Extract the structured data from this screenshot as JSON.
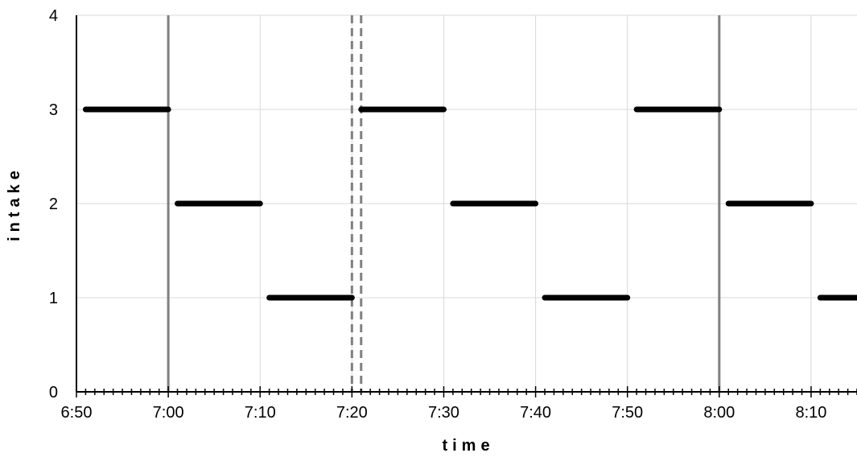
{
  "chart_data": {
    "type": "line",
    "xlabel": "time",
    "ylabel": "intake",
    "xlim": [
      "6:50",
      "8:15"
    ],
    "ylim": [
      0,
      4
    ],
    "x_ticks": [
      "6:50",
      "7:00",
      "7:10",
      "7:20",
      "7:30",
      "7:40",
      "7:50",
      "8:00",
      "8:10"
    ],
    "y_ticks": [
      0,
      1,
      2,
      3,
      4
    ],
    "grid": true,
    "colors": {
      "series": "#000000",
      "grid": "#d9d9d9",
      "marker_solid": "#808080",
      "marker_dashed": "#808080"
    },
    "series": [
      {
        "segments": [
          {
            "x_start": "6:51",
            "x_end": "7:00",
            "y": 3
          },
          {
            "x_start": "7:01",
            "x_end": "7:10",
            "y": 2
          },
          {
            "x_start": "7:11",
            "x_end": "7:20",
            "y": 1
          },
          {
            "x_start": "7:21",
            "x_end": "7:30",
            "y": 3
          },
          {
            "x_start": "7:31",
            "x_end": "7:40",
            "y": 2
          },
          {
            "x_start": "7:41",
            "x_end": "7:50",
            "y": 1
          },
          {
            "x_start": "7:51",
            "x_end": "8:00",
            "y": 3
          },
          {
            "x_start": "8:01",
            "x_end": "8:10",
            "y": 2
          },
          {
            "x_start": "8:11",
            "x_end": "8:15",
            "y": 1
          }
        ]
      }
    ],
    "vertical_markers": [
      {
        "x": "7:00",
        "style": "solid"
      },
      {
        "x": "7:20",
        "style": "dashed"
      },
      {
        "x": "7:21",
        "style": "dashed"
      },
      {
        "x": "8:00",
        "style": "solid"
      }
    ]
  }
}
